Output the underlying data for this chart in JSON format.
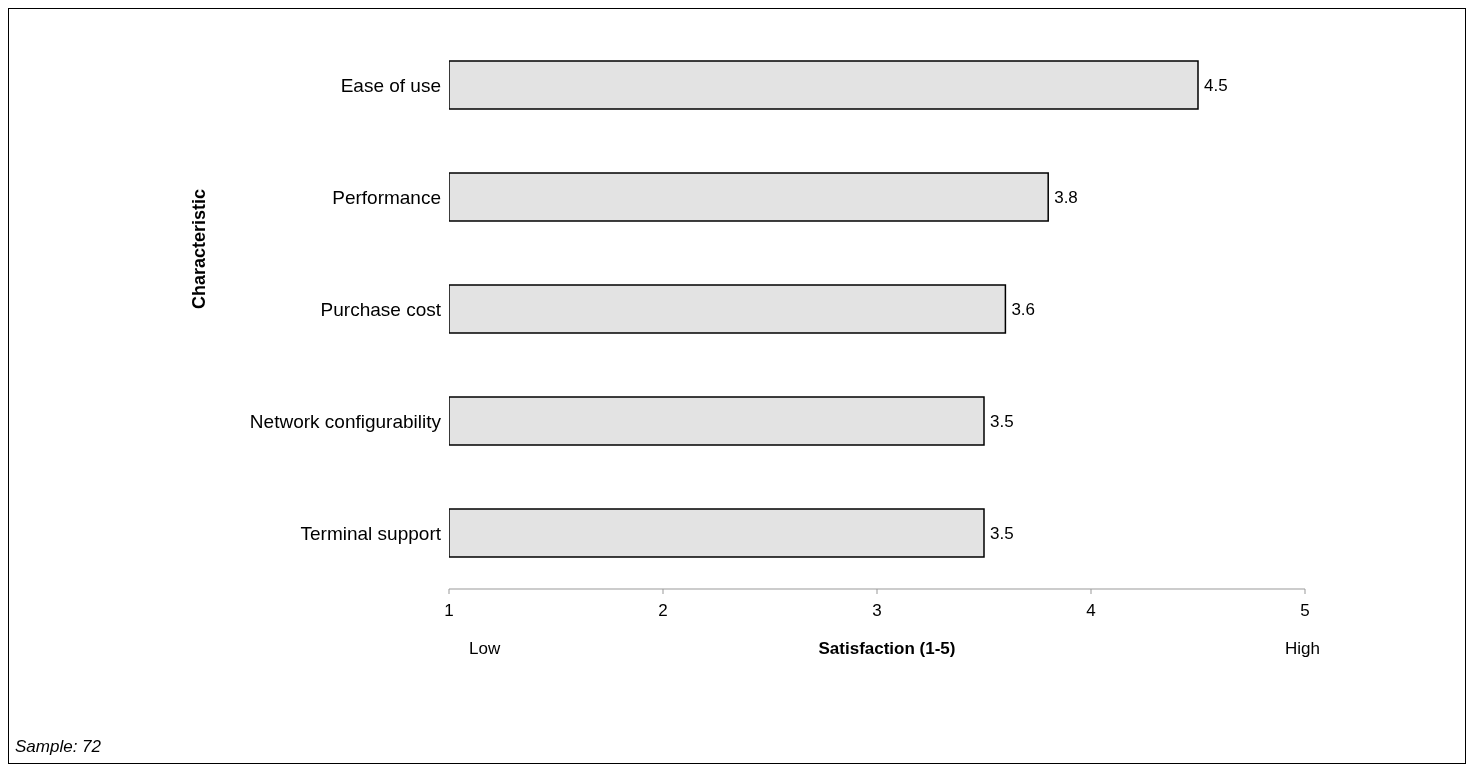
{
  "chart_data": {
    "type": "bar",
    "orientation": "horizontal",
    "xlabel": "Satisfaction (1-5)",
    "ylabel": "Characteristic",
    "categories": [
      "Ease of use",
      "Performance",
      "Purchase cost",
      "Network configurability",
      "Terminal support"
    ],
    "values": [
      4.5,
      3.8,
      3.6,
      3.5,
      3.5
    ],
    "color": "#e3e3e3",
    "data_labels": true,
    "xlim": [
      1,
      5
    ],
    "xticks": [
      1,
      2,
      3,
      4,
      5
    ],
    "grid": false,
    "legend": false,
    "annotations": [
      "Low",
      "High",
      "Sample: 72"
    ]
  }
}
